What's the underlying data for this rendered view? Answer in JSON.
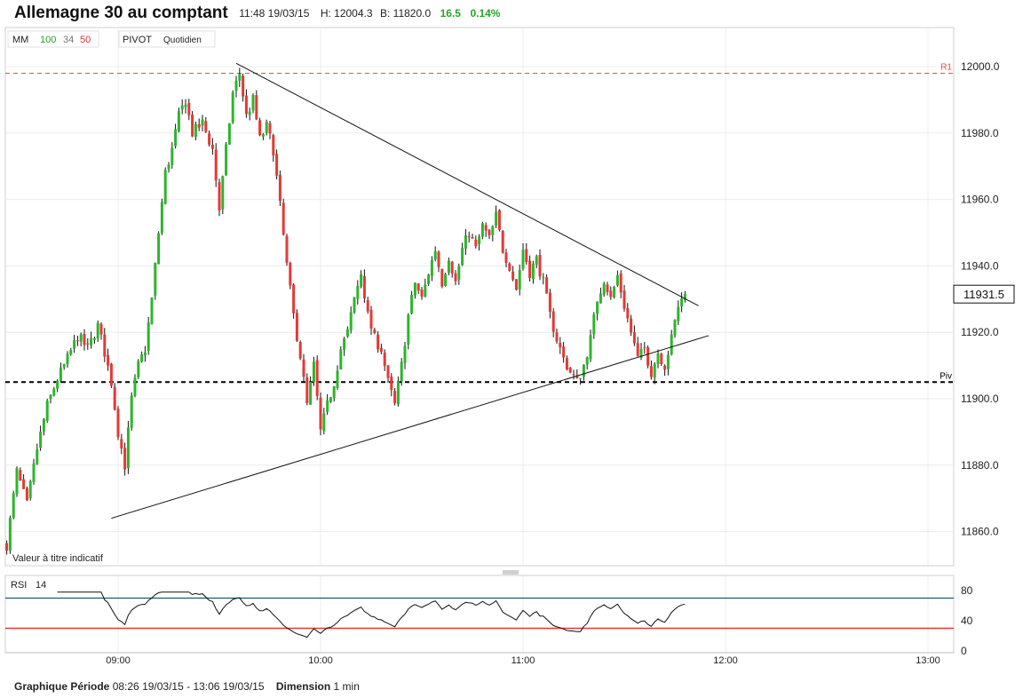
{
  "header": {
    "title": "Allemagne 30 au comptant",
    "time": "11:48 19/03/15",
    "high": "H: 12004.3",
    "bid": "B: 11820.0",
    "change": "16.5",
    "change_pct": "0.14%"
  },
  "legend": {
    "mm_label": "MM",
    "mm_periods": [
      "100",
      "34",
      "50"
    ],
    "mm_colors": [
      "#2a9d2a",
      "#777777",
      "#d9352b"
    ],
    "pivot_label": "PIVOT",
    "pivot_period": "Quotidien"
  },
  "disclaimer": "Valeur à titre indicatif",
  "price_tag": "11931.5",
  "pivot_levels": [
    {
      "name": "R1",
      "value": 11998,
      "color": "#e05050"
    },
    {
      "name": "Piv",
      "value": 11905,
      "color": "#000000"
    }
  ],
  "rsi": {
    "label": "RSI",
    "period": "14",
    "ticks": [
      "80",
      "40",
      "0"
    ],
    "levels": [
      70,
      30
    ]
  },
  "footer": {
    "period_label": "Graphique Période",
    "period_value": "08:26 19/03/15 - 13:06 19/03/15",
    "dimension_label": "Dimension",
    "dimension_value": "1 min"
  },
  "colors": {
    "up": "#2db52d",
    "down": "#e53935",
    "rsi_upper": "#1e5a6e",
    "rsi_lower": "#e53935"
  },
  "chart_data": {
    "type": "candlestick",
    "title": "Allemagne 30 au comptant",
    "x_range": [
      "08:26",
      "13:06"
    ],
    "x_tick_labels": [
      "09:00",
      "10:00",
      "11:00",
      "12:00",
      "13:00"
    ],
    "y_range": [
      11852,
      12020
    ],
    "y_tick_labels": [
      "12000.0",
      "11980.0",
      "11960.0",
      "11940.0",
      "11920.0",
      "11900.0",
      "11880.0",
      "11860.0"
    ],
    "grid": true,
    "trendlines": [
      {
        "from": [
          "09:35",
          12001
        ],
        "to": [
          "11:52",
          11928
        ]
      },
      {
        "from": [
          "08:58",
          11864
        ],
        "to": [
          "11:55",
          11919
        ]
      }
    ],
    "price_path": [
      [
        "08:27",
        11856
      ],
      [
        "08:30",
        11878
      ],
      [
        "08:33",
        11868
      ],
      [
        "08:36",
        11885
      ],
      [
        "08:39",
        11898
      ],
      [
        "08:42",
        11906
      ],
      [
        "08:45",
        11912
      ],
      [
        "08:48",
        11919
      ],
      [
        "08:51",
        11915
      ],
      [
        "08:54",
        11922
      ],
      [
        "08:56",
        11914
      ],
      [
        "08:58",
        11905
      ],
      [
        "09:00",
        11890
      ],
      [
        "09:02",
        11880
      ],
      [
        "09:04",
        11900
      ],
      [
        "09:06",
        11910
      ],
      [
        "09:08",
        11915
      ],
      [
        "09:10",
        11930
      ],
      [
        "09:12",
        11950
      ],
      [
        "09:14",
        11968
      ],
      [
        "09:16",
        11975
      ],
      [
        "09:18",
        11985
      ],
      [
        "09:20",
        11990
      ],
      [
        "09:22",
        11980
      ],
      [
        "09:25",
        11983
      ],
      [
        "09:28",
        11975
      ],
      [
        "09:30",
        11957
      ],
      [
        "09:32",
        11975
      ],
      [
        "09:34",
        11992
      ],
      [
        "09:36",
        11998
      ],
      [
        "09:38",
        11985
      ],
      [
        "09:40",
        11990
      ],
      [
        "09:42",
        11978
      ],
      [
        "09:44",
        11982
      ],
      [
        "09:46",
        11975
      ],
      [
        "09:48",
        11958
      ],
      [
        "09:50",
        11940
      ],
      [
        "09:52",
        11925
      ],
      [
        "09:54",
        11913
      ],
      [
        "09:56",
        11898
      ],
      [
        "09:58",
        11910
      ],
      [
        "10:00",
        11890
      ],
      [
        "10:02",
        11898
      ],
      [
        "10:04",
        11905
      ],
      [
        "10:06",
        11915
      ],
      [
        "10:08",
        11920
      ],
      [
        "10:10",
        11930
      ],
      [
        "10:12",
        11938
      ],
      [
        "10:14",
        11925
      ],
      [
        "10:16",
        11918
      ],
      [
        "10:18",
        11915
      ],
      [
        "10:20",
        11905
      ],
      [
        "10:22",
        11898
      ],
      [
        "10:24",
        11910
      ],
      [
        "10:26",
        11925
      ],
      [
        "10:28",
        11935
      ],
      [
        "10:30",
        11930
      ],
      [
        "10:32",
        11938
      ],
      [
        "10:34",
        11945
      ],
      [
        "10:36",
        11935
      ],
      [
        "10:38",
        11943
      ],
      [
        "10:40",
        11935
      ],
      [
        "10:42",
        11945
      ],
      [
        "10:44",
        11950
      ],
      [
        "10:46",
        11945
      ],
      [
        "10:48",
        11952
      ],
      [
        "10:50",
        11948
      ],
      [
        "10:52",
        11955
      ],
      [
        "10:54",
        11945
      ],
      [
        "10:56",
        11940
      ],
      [
        "10:58",
        11933
      ],
      [
        "11:00",
        11945
      ],
      [
        "11:02",
        11938
      ],
      [
        "11:04",
        11942
      ],
      [
        "11:06",
        11935
      ],
      [
        "11:08",
        11925
      ],
      [
        "11:10",
        11918
      ],
      [
        "11:12",
        11912
      ],
      [
        "11:14",
        11908
      ],
      [
        "11:16",
        11905
      ],
      [
        "11:18",
        11910
      ],
      [
        "11:20",
        11918
      ],
      [
        "11:22",
        11930
      ],
      [
        "11:24",
        11936
      ],
      [
        "11:26",
        11930
      ],
      [
        "11:28",
        11937
      ],
      [
        "11:30",
        11928
      ],
      [
        "11:32",
        11920
      ],
      [
        "11:34",
        11912
      ],
      [
        "11:36",
        11915
      ],
      [
        "11:38",
        11908
      ],
      [
        "11:40",
        11914
      ],
      [
        "11:42",
        11910
      ],
      [
        "11:44",
        11918
      ],
      [
        "11:46",
        11928
      ],
      [
        "11:48",
        11931.5
      ]
    ]
  }
}
